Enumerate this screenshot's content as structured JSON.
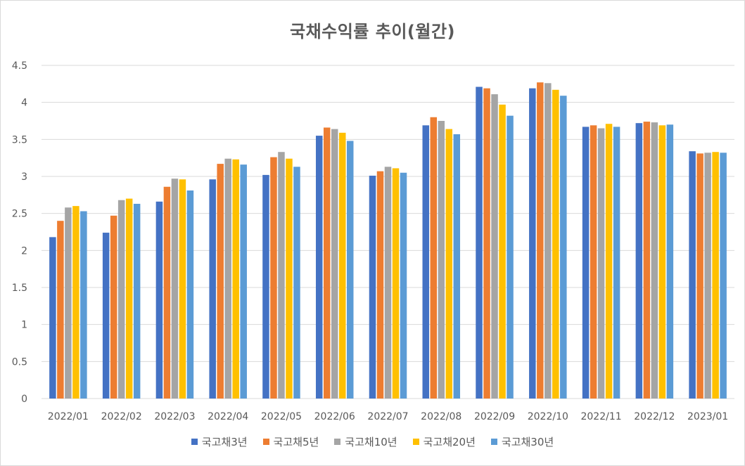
{
  "chart_data": {
    "type": "bar",
    "title": "국채수익률 추이(월간)",
    "categories": [
      "2022/01",
      "2022/02",
      "2022/03",
      "2022/04",
      "2022/05",
      "2022/06",
      "2022/07",
      "2022/08",
      "2022/09",
      "2022/10",
      "2022/11",
      "2022/12",
      "2023/01"
    ],
    "series": [
      {
        "name": "국고채3년",
        "color": "#4472C4",
        "values": [
          2.18,
          2.24,
          2.66,
          2.96,
          3.02,
          3.55,
          3.01,
          3.69,
          4.21,
          4.19,
          3.67,
          3.72,
          3.34
        ]
      },
      {
        "name": "국고채5년",
        "color": "#ED7D31",
        "values": [
          2.4,
          2.47,
          2.86,
          3.17,
          3.26,
          3.66,
          3.07,
          3.8,
          4.19,
          4.27,
          3.69,
          3.74,
          3.31
        ]
      },
      {
        "name": "국고채10년",
        "color": "#A5A5A5",
        "values": [
          2.58,
          2.68,
          2.97,
          3.24,
          3.33,
          3.64,
          3.13,
          3.75,
          4.11,
          4.26,
          3.65,
          3.73,
          3.32
        ]
      },
      {
        "name": "국고채20년",
        "color": "#FFC000",
        "values": [
          2.6,
          2.7,
          2.96,
          3.23,
          3.24,
          3.59,
          3.11,
          3.64,
          3.97,
          4.17,
          3.71,
          3.69,
          3.33
        ]
      },
      {
        "name": "국고채30년",
        "color": "#5B9BD5",
        "values": [
          2.53,
          2.63,
          2.81,
          3.16,
          3.13,
          3.48,
          3.05,
          3.57,
          3.82,
          4.09,
          3.67,
          3.7,
          3.32
        ]
      }
    ],
    "ylim": [
      0,
      4.5
    ],
    "yticks": [
      0,
      0.5,
      1,
      1.5,
      2,
      2.5,
      3,
      3.5,
      4,
      4.5
    ],
    "ytick_labels": [
      "0",
      "0.5",
      "1",
      "1.5",
      "2",
      "2.5",
      "3",
      "3.5",
      "4",
      "4.5"
    ],
    "grid": true,
    "legend_position": "bottom"
  }
}
